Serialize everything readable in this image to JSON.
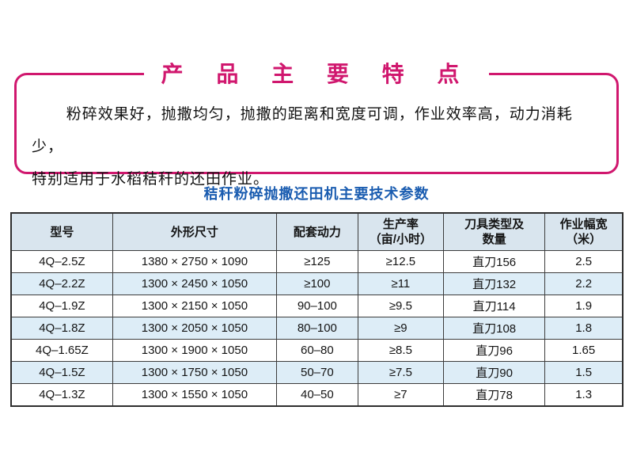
{
  "colors": {
    "accent_pink": "#d0176e",
    "title_blue": "#1a5cb0",
    "table_header_bg": "#d9e5ee",
    "table_alt_row_bg": "#ddedf7",
    "table_border": "#3c3c3c"
  },
  "feature_box": {
    "title": "产 品 主 要 特 点",
    "description_line1": "粉碎效果好，抛撒均匀，抛撒的距离和宽度可调，作业效率高，动力消耗少，",
    "description_line2": "特别适用于水稻秸秆的还田作业。"
  },
  "spec_table": {
    "title": "秸秆粉碎抛撒还田机主要技术参数",
    "columns": [
      "型号",
      "外形尺寸",
      "配套动力",
      "生产率\n（亩/小时）",
      "刀具类型及\n数量",
      "作业幅宽\n（米）"
    ],
    "rows": [
      {
        "model": "4Q–2.5Z",
        "dimensions": "1380 × 2750 × 1090",
        "power": "≥125",
        "productivity": "≥12.5",
        "blade": "直刀156",
        "width": "2.5"
      },
      {
        "model": "4Q–2.2Z",
        "dimensions": "1300 × 2450 × 1050",
        "power": "≥100",
        "productivity": "≥11",
        "blade": "直刀132",
        "width": "2.2"
      },
      {
        "model": "4Q–1.9Z",
        "dimensions": "1300 × 2150 × 1050",
        "power": "90–100",
        "productivity": "≥9.5",
        "blade": "直刀114",
        "width": "1.9"
      },
      {
        "model": "4Q–1.8Z",
        "dimensions": "1300 × 2050 × 1050",
        "power": "80–100",
        "productivity": "≥9",
        "blade": "直刀108",
        "width": "1.8"
      },
      {
        "model": "4Q–1.65Z",
        "dimensions": "1300 × 1900 × 1050",
        "power": "60–80",
        "productivity": "≥8.5",
        "blade": "直刀96",
        "width": "1.65"
      },
      {
        "model": "4Q–1.5Z",
        "dimensions": "1300 × 1750 × 1050",
        "power": "50–70",
        "productivity": "≥7.5",
        "blade": "直刀90",
        "width": "1.5"
      },
      {
        "model": "4Q–1.3Z",
        "dimensions": "1300 × 1550 × 1050",
        "power": "40–50",
        "productivity": "≥7",
        "blade": "直刀78",
        "width": "1.3"
      }
    ]
  }
}
